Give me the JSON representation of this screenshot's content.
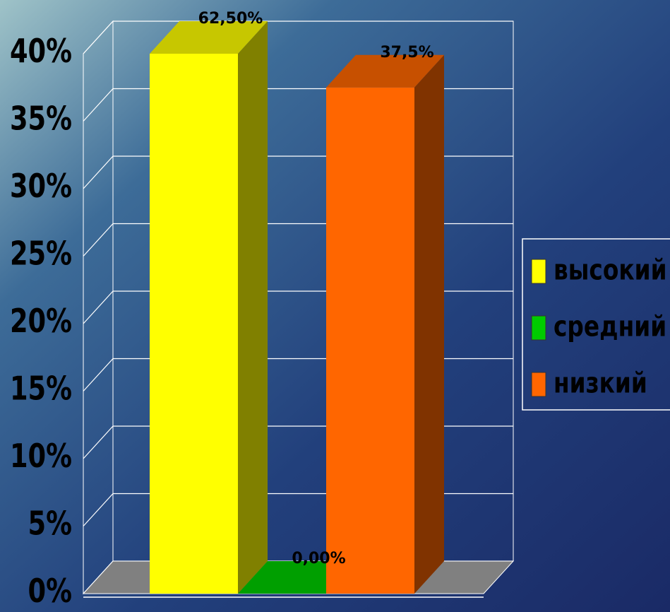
{
  "chart_data": {
    "type": "bar3d",
    "categories": [
      null
    ],
    "series": [
      {
        "name": "высокий",
        "color": "#ffff00",
        "values": [
          62.5
        ],
        "value_labels": [
          "62,50%"
        ]
      },
      {
        "name": "средний",
        "color": "#00cc00",
        "values": [
          0
        ],
        "value_labels": [
          "0,00%"
        ]
      },
      {
        "name": "низкий",
        "color": "#ff6600",
        "values": [
          37.5
        ],
        "value_labels": [
          "37,5%"
        ]
      }
    ],
    "ylim": [
      0,
      40
    ],
    "yticks": [
      {
        "value": 0,
        "label": "0%"
      },
      {
        "value": 5,
        "label": "5%"
      },
      {
        "value": 10,
        "label": "10%"
      },
      {
        "value": 15,
        "label": "15%"
      },
      {
        "value": 20,
        "label": "20%"
      },
      {
        "value": 25,
        "label": "25%"
      },
      {
        "value": 30,
        "label": "30%"
      },
      {
        "value": 35,
        "label": "35%"
      },
      {
        "value": 40,
        "label": "40%"
      }
    ],
    "grid": true,
    "legend": "right"
  }
}
